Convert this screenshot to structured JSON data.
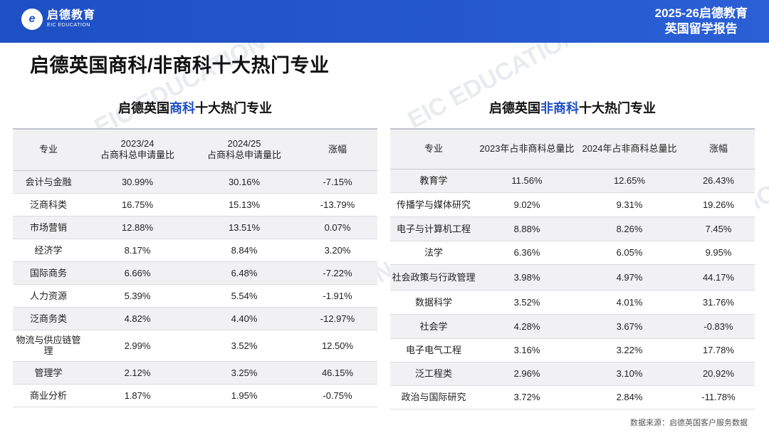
{
  "header": {
    "logo_cn": "启德教育",
    "logo_en": "EIC EDUCATION",
    "report_line1": "2025-26启德教育",
    "report_line2": "英国留学报告"
  },
  "page_title": "启德英国商科/非商科十大热门专业",
  "business": {
    "heading_pre": "启德英国",
    "heading_hl": "商科",
    "heading_post": "十大热门专业",
    "columns": {
      "major": "专业",
      "y1_line1": "2023/24",
      "y1_line2": "占商科总申请量比",
      "y2_line1": "2024/25",
      "y2_line2": "占商科总申请量比",
      "change": "涨幅"
    },
    "rows": [
      {
        "major": "会计与金融",
        "y1": "30.99%",
        "y2": "30.16%",
        "change": "-7.15%"
      },
      {
        "major": "泛商科类",
        "y1": "16.75%",
        "y2": "15.13%",
        "change": "-13.79%"
      },
      {
        "major": "市场营销",
        "y1": "12.88%",
        "y2": "13.51%",
        "change": "0.07%"
      },
      {
        "major": "经济学",
        "y1": "8.17%",
        "y2": "8.84%",
        "change": "3.20%"
      },
      {
        "major": "国际商务",
        "y1": "6.66%",
        "y2": "6.48%",
        "change": "-7.22%"
      },
      {
        "major": "人力资源",
        "y1": "5.39%",
        "y2": "5.54%",
        "change": "-1.91%"
      },
      {
        "major": "泛商务类",
        "y1": "4.82%",
        "y2": "4.40%",
        "change": "-12.97%"
      },
      {
        "major": "物流与供应链管理",
        "y1": "2.99%",
        "y2": "3.52%",
        "change": "12.50%"
      },
      {
        "major": "管理学",
        "y1": "2.12%",
        "y2": "3.25%",
        "change": "46.15%"
      },
      {
        "major": "商业分析",
        "y1": "1.87%",
        "y2": "1.95%",
        "change": "-0.75%"
      }
    ]
  },
  "nonbusiness": {
    "heading_pre": "启德英国",
    "heading_hl": "非商科",
    "heading_post": "十大热门专业",
    "columns": {
      "major": "专业",
      "y1": "2023年占非商科总量比",
      "y2": "2024年占非商科总量比",
      "change": "涨幅"
    },
    "rows": [
      {
        "major": "教育学",
        "y1": "11.56%",
        "y2": "12.65%",
        "change": "26.43%"
      },
      {
        "major": "传播学与媒体研究",
        "y1": "9.02%",
        "y2": "9.31%",
        "change": "19.26%"
      },
      {
        "major": "电子与计算机工程",
        "y1": "8.88%",
        "y2": "8.26%",
        "change": "7.45%"
      },
      {
        "major": "法学",
        "y1": "6.36%",
        "y2": "6.05%",
        "change": "9.95%"
      },
      {
        "major": "社会政策与行政管理",
        "y1": "3.98%",
        "y2": "4.97%",
        "change": "44.17%"
      },
      {
        "major": "数据科学",
        "y1": "3.52%",
        "y2": "4.01%",
        "change": "31.76%"
      },
      {
        "major": "社会学",
        "y1": "4.28%",
        "y2": "3.67%",
        "change": "-0.83%"
      },
      {
        "major": "电子电气工程",
        "y1": "3.16%",
        "y2": "3.22%",
        "change": "17.78%"
      },
      {
        "major": "泛工程类",
        "y1": "2.96%",
        "y2": "3.10%",
        "change": "20.92%"
      },
      {
        "major": "政治与国际研究",
        "y1": "3.72%",
        "y2": "2.84%",
        "change": "-11.78%"
      }
    ]
  },
  "source": "数据来源：启德英国客户服务数据",
  "colors": {
    "brand_blue": "#1e4fc4",
    "row_shade": "#f1f1f3"
  }
}
